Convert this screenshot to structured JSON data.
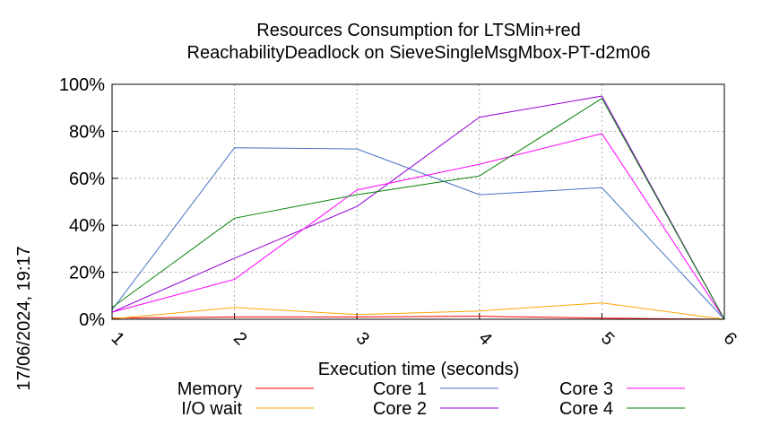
{
  "chart_data": {
    "type": "line",
    "title_line1": "Resources Consumption for LTSMin+red",
    "title_line2": "ReachabilityDeadlock on SieveSingleMsgMbox-PT-d2m06",
    "xlabel": "Execution time (seconds)",
    "ylabel": "",
    "side_label": "17/06/2024, 19:17",
    "x": [
      1,
      2,
      3,
      4,
      5,
      6
    ],
    "xlim": [
      1,
      6
    ],
    "ylim": [
      0,
      100
    ],
    "x_ticks": [
      "1",
      "2",
      "3",
      "4",
      "5",
      "6"
    ],
    "y_ticks": [
      "0%",
      "20%",
      "40%",
      "60%",
      "80%",
      "100%"
    ],
    "grid": true,
    "legend_position": "bottom",
    "series": [
      {
        "name": "Memory",
        "color": "#ff0000",
        "values": [
          0.5,
          1.0,
          1.0,
          1.3,
          0.5,
          0
        ]
      },
      {
        "name": "I/O wait",
        "color": "#ffa500",
        "values": [
          0.2,
          5.0,
          2.0,
          3.5,
          7.0,
          0
        ]
      },
      {
        "name": "Core 1",
        "color": "#4472c4",
        "values": [
          4,
          73,
          72.5,
          53,
          56,
          0
        ]
      },
      {
        "name": "Core 2",
        "color": "#9400d3",
        "values": [
          3,
          26,
          48,
          86,
          95,
          0
        ]
      },
      {
        "name": "Core 3",
        "color": "#ff00ff",
        "values": [
          3,
          17,
          55,
          66,
          79,
          0
        ]
      },
      {
        "name": "Core 4",
        "color": "#008000",
        "values": [
          5,
          43,
          53,
          61,
          94,
          0
        ]
      }
    ]
  }
}
